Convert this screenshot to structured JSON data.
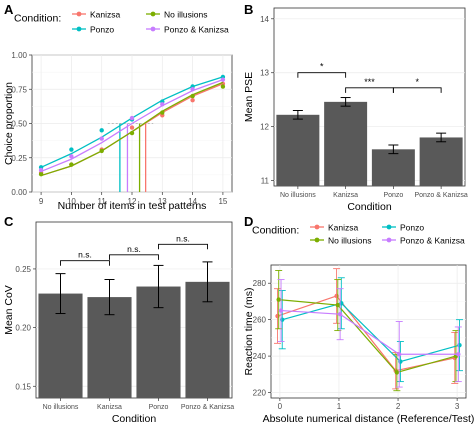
{
  "chart_data": [
    {
      "panel": "A",
      "type": "line",
      "legend_title": "Condition:",
      "legend_placement": "top",
      "xlabel": "Number of items in test patterns",
      "ylabel": "Choice proportion",
      "xlim": [
        9,
        15
      ],
      "ylim": [
        0,
        1
      ],
      "xticks": [
        "9",
        "10",
        "11",
        "12",
        "13",
        "14",
        "15"
      ],
      "yticks": [
        "0.00",
        "0.25",
        "0.50",
        "0.75",
        "1.00"
      ],
      "grid": true,
      "x": [
        9,
        10,
        11,
        12,
        13,
        14,
        15
      ],
      "series": [
        {
          "name": "Kanizsa",
          "color": "#F8766D",
          "points": [
            0.14,
            0.2,
            0.31,
            0.47,
            0.56,
            0.67,
            0.79
          ],
          "curve": [
            0.12,
            0.19,
            0.3,
            0.44,
            0.58,
            0.7,
            0.79
          ],
          "pse": 12.45
        },
        {
          "name": "No illusions",
          "color": "#7CAE00",
          "points": [
            0.13,
            0.2,
            0.3,
            0.43,
            0.58,
            0.7,
            0.77
          ],
          "curve": [
            0.12,
            0.19,
            0.3,
            0.44,
            0.59,
            0.71,
            0.8
          ],
          "pse": 12.25
        },
        {
          "name": "Ponzo",
          "color": "#00BFC4",
          "points": [
            0.18,
            0.31,
            0.45,
            0.53,
            0.66,
            0.77,
            0.84
          ],
          "curve": [
            0.18,
            0.28,
            0.4,
            0.54,
            0.67,
            0.77,
            0.84
          ],
          "pse": 11.6
        },
        {
          "name": "Ponzo & Kanizsa",
          "color": "#C77CFF",
          "points": [
            0.16,
            0.26,
            0.39,
            0.54,
            0.64,
            0.75,
            0.82
          ],
          "curve": [
            0.15,
            0.24,
            0.36,
            0.5,
            0.63,
            0.74,
            0.82
          ],
          "pse": 11.85
        }
      ]
    },
    {
      "panel": "B",
      "type": "bar",
      "xlabel": "Condition",
      "ylabel": "Mean PSE",
      "ylim": [
        10.9,
        14.2
      ],
      "yticks": [
        11,
        12,
        13,
        14
      ],
      "categories": [
        "No illusions",
        "Kanizsa",
        "Ponzo",
        "Ponzo & Kanizsa"
      ],
      "values": [
        12.22,
        12.46,
        11.58,
        11.8
      ],
      "errors": [
        0.08,
        0.08,
        0.08,
        0.08
      ],
      "significance": [
        {
          "from": 0,
          "to": 1,
          "label": "*",
          "y": 13.0
        },
        {
          "from": 1,
          "to": 2,
          "label": "***",
          "y": 12.72
        },
        {
          "from": 2,
          "to": 3,
          "label": "*",
          "y": 12.72
        }
      ],
      "bar_color": "#595959"
    },
    {
      "panel": "C",
      "type": "bar",
      "xlabel": "Condition",
      "ylabel": "Mean CoV",
      "ylim": [
        0.14,
        0.29
      ],
      "yticks": [
        "0.15",
        "0.20",
        "0.25"
      ],
      "categories": [
        "No illusions",
        "Kanizsa",
        "Ponzo",
        "Ponzo & Kanizsa"
      ],
      "values": [
        0.229,
        0.226,
        0.235,
        0.239
      ],
      "errors": [
        0.017,
        0.015,
        0.018,
        0.017
      ],
      "significance": [
        {
          "from": 0,
          "to": 1,
          "label": "n.s.",
          "y": 0.257
        },
        {
          "from": 1,
          "to": 2,
          "label": "n.s.",
          "y": 0.262
        },
        {
          "from": 2,
          "to": 3,
          "label": "n.s.",
          "y": 0.271
        }
      ],
      "bar_color": "#595959"
    },
    {
      "panel": "D",
      "type": "line",
      "legend_title": "Condition:",
      "legend_placement": "top",
      "xlabel": "Absolute numerical distance (Reference/Test)",
      "ylabel": "Reaction time (ms)",
      "xlim": [
        -0.15,
        3.15
      ],
      "ylim": [
        217,
        290
      ],
      "x": [
        0,
        1,
        2,
        3
      ],
      "xticks": [
        "0",
        "1",
        "2",
        "3"
      ],
      "yticks": [
        220,
        240,
        260,
        280
      ],
      "grid": true,
      "series": [
        {
          "name": "Kanizsa",
          "color": "#F8766D",
          "values": [
            262,
            273,
            232,
            239
          ],
          "errors": [
            15,
            15,
            10,
            14
          ]
        },
        {
          "name": "Ponzo",
          "color": "#00BFC4",
          "values": [
            260,
            269,
            237,
            246
          ],
          "errors": [
            16,
            14,
            11,
            14
          ]
        },
        {
          "name": "No illusions",
          "color": "#7CAE00",
          "values": [
            271,
            268,
            231,
            240
          ],
          "errors": [
            16,
            14,
            10,
            14
          ]
        },
        {
          "name": "Ponzo & Kanizsa",
          "color": "#C77CFF",
          "values": [
            265,
            263,
            241,
            241
          ],
          "errors": [
            17,
            14,
            18,
            15
          ]
        }
      ]
    }
  ]
}
